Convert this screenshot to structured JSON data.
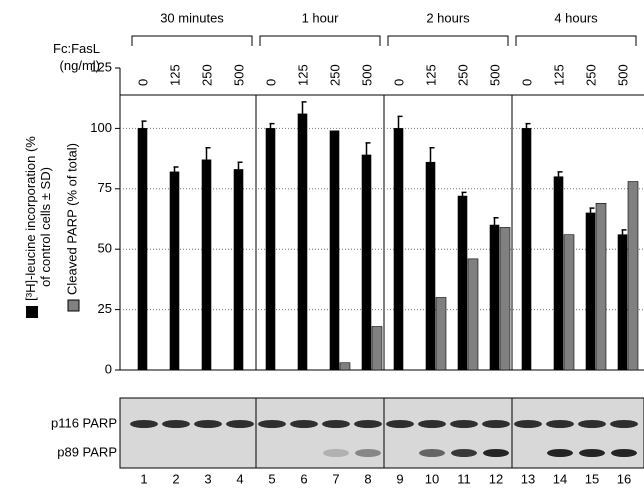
{
  "chart_data": {
    "type": "bar",
    "groups": [
      "30 minutes",
      "1 hour",
      "2 hours",
      "4 hours"
    ],
    "concentration_label": "Fc:FasL (ng/ml)",
    "concentrations": [
      0,
      125,
      250,
      500,
      0,
      125,
      250,
      500,
      0,
      125,
      250,
      500,
      0,
      125,
      250,
      500
    ],
    "categories": [
      "1",
      "2",
      "3",
      "4",
      "5",
      "6",
      "7",
      "8",
      "9",
      "10",
      "11",
      "12",
      "13",
      "14",
      "15",
      "16"
    ],
    "series": [
      {
        "name": "[³H]-leucine incorporation (% of control cells ± SD)",
        "color": "#000000",
        "values": [
          100,
          82,
          87,
          83,
          100,
          106,
          99,
          89,
          100,
          86,
          72,
          60,
          100,
          80,
          65,
          56
        ],
        "errors": [
          3,
          2,
          5,
          3,
          2,
          5,
          null,
          5,
          5,
          6,
          1.5,
          3,
          2,
          2,
          2,
          2
        ]
      },
      {
        "name": "Cleaved PARP (% of total)",
        "color": "#808080",
        "values": [
          null,
          null,
          null,
          null,
          null,
          null,
          3,
          18,
          null,
          30,
          46,
          59,
          null,
          56,
          69,
          78
        ]
      }
    ],
    "ylim": [
      0,
      125
    ],
    "yticks": [
      0,
      25,
      50,
      75,
      100,
      125
    ],
    "grid": true,
    "blot_labels": [
      "p116 PARP",
      "p89 PARP"
    ]
  }
}
